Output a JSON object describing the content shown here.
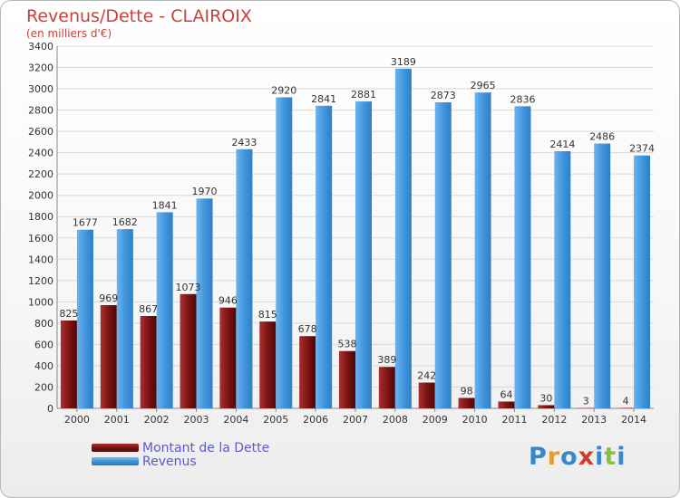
{
  "chart_data": {
    "type": "bar",
    "title": "Revenus/Dette - CLAIROIX",
    "subtitle": "(en milliers d'€)",
    "categories": [
      "2000",
      "2001",
      "2002",
      "2003",
      "2004",
      "2005",
      "2006",
      "2007",
      "2008",
      "2009",
      "2010",
      "2011",
      "2012",
      "2013",
      "2014"
    ],
    "series": [
      {
        "name": "Montant de la Dette",
        "color": "#7a1212",
        "values": [
          825,
          969,
          867,
          1073,
          946,
          815,
          678,
          538,
          389,
          242,
          98,
          64,
          30,
          3,
          4
        ]
      },
      {
        "name": "Revenus",
        "color": "#3f94dd",
        "values": [
          1677,
          1682,
          1841,
          1970,
          2433,
          2920,
          2841,
          2881,
          3189,
          2873,
          2965,
          2836,
          2414,
          2486,
          2374
        ]
      }
    ],
    "ylim": [
      0,
      3400
    ],
    "yticks": [
      0,
      200,
      400,
      600,
      800,
      1000,
      1200,
      1400,
      1600,
      1800,
      2000,
      2200,
      2400,
      2600,
      2800,
      3000,
      3200,
      3400
    ],
    "grid": true,
    "legend": "bottom-left"
  },
  "legend": {
    "dette_label": "Montant de la Dette",
    "revenus_label": "Revenus",
    "dette_color": "#7a1212",
    "revenus_color": "#3f94dd"
  },
  "logo": {
    "letters": [
      "P",
      "r",
      "o",
      "x",
      "i",
      "t",
      "i"
    ],
    "colors": [
      "#3a86c8",
      "#e89a2c",
      "#3a86c8",
      "#d23c2e",
      "#3a86c8",
      "#8cbf3f",
      "#3a86c8"
    ]
  }
}
